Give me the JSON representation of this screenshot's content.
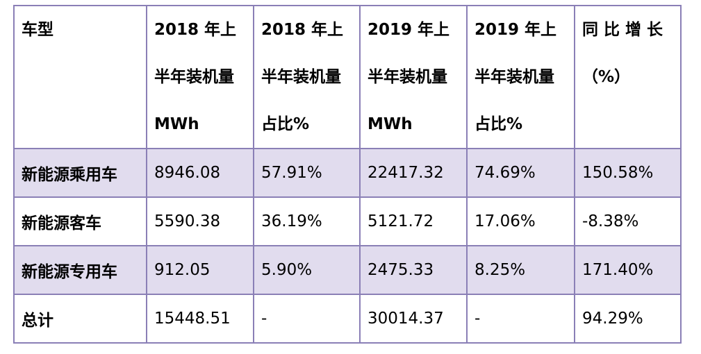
{
  "table": {
    "headers": [
      {
        "lines": [
          "车型"
        ]
      },
      {
        "lines": [
          "2018 年上",
          "半年装机量",
          "MWh"
        ]
      },
      {
        "lines": [
          "2018 年上",
          "半年装机量",
          "占比%"
        ]
      },
      {
        "lines": [
          "2019 年上",
          "半年装机量",
          "MWh"
        ]
      },
      {
        "lines": [
          "2019 年上",
          "半年装机量",
          "占比%"
        ]
      },
      {
        "lines": [
          "同 比 增 长",
          "（%）"
        ]
      }
    ],
    "rows": [
      {
        "cells": [
          "新能源乘用车",
          "8946.08",
          "57.91%",
          "22417.32",
          "74.69%",
          "150.58%"
        ]
      },
      {
        "cells": [
          "新能源客车",
          "5590.38",
          "36.19%",
          "5121.72",
          "17.06%",
          "-8.38%"
        ]
      },
      {
        "cells": [
          "新能源专用车",
          "912.05",
          "5.90%",
          "2475.33",
          "8.25%",
          "171.40%"
        ]
      },
      {
        "cells": [
          "总计",
          "15448.51",
          "-",
          "30014.37",
          "-",
          "94.29%"
        ]
      }
    ]
  },
  "colors": {
    "border": "#8a7fb6",
    "shaded_row": "#e1dcee"
  }
}
